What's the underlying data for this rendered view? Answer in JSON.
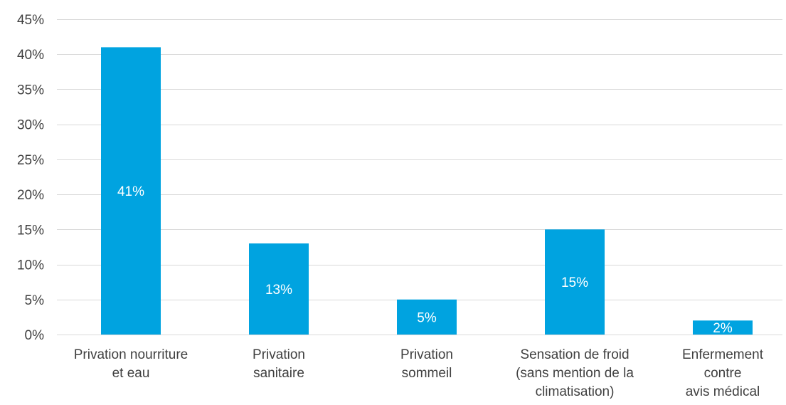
{
  "chart_data": {
    "type": "bar",
    "categories": [
      [
        "Privation nourriture",
        "et eau"
      ],
      [
        "Privation",
        "sanitaire"
      ],
      [
        "Privation",
        "sommeil"
      ],
      [
        "Sensation de froid",
        "(sans mention de la",
        "climatisation)"
      ],
      [
        "Enfermement",
        "contre",
        "avis médical"
      ]
    ],
    "values": [
      41,
      13,
      5,
      15,
      2
    ],
    "data_labels": [
      "41%",
      "13%",
      "5%",
      "15%",
      "2%"
    ],
    "ylim": [
      0,
      45
    ],
    "yticks": [
      0,
      5,
      10,
      15,
      20,
      25,
      30,
      35,
      40,
      45
    ],
    "ytick_labels": [
      "0%",
      "5%",
      "10%",
      "15%",
      "20%",
      "25%",
      "30%",
      "35%",
      "40%",
      "45%"
    ],
    "grid": true,
    "bar_color": "#00a3e0",
    "grid_color": "#d9d9d9",
    "text_color": "#404040",
    "data_label_color": "#ffffff"
  }
}
